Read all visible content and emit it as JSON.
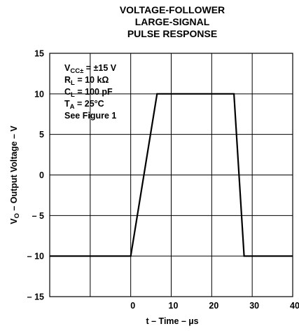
{
  "chart_data": {
    "type": "line",
    "title": [
      "VOLTAGE-FOLLOWER",
      "LARGE-SIGNAL",
      "PULSE RESPONSE"
    ],
    "xlabel": "t – Time – µs",
    "ylabel": {
      "main": "V",
      "sub": "O",
      "rest": " – Output Voltage – V"
    },
    "xlim": [
      -20,
      40
    ],
    "ylim": [
      -15,
      15
    ],
    "x_ticks": [
      -20,
      -10,
      0,
      10,
      20,
      30,
      40
    ],
    "x_tick_labels": [
      "",
      "",
      "0",
      "10",
      "20",
      "30",
      "40"
    ],
    "y_ticks": [
      15,
      10,
      5,
      0,
      -5,
      -10,
      -15
    ],
    "y_tick_labels": [
      "15",
      "10",
      "5",
      "0",
      "– 5",
      "– 10",
      "– 15"
    ],
    "grid": true,
    "series": [
      {
        "x": [
          -20,
          0,
          6.5,
          25.5,
          28,
          40
        ],
        "y": [
          -10,
          -10,
          10,
          10,
          -10,
          -10
        ]
      }
    ],
    "conditions": [
      {
        "main": "V",
        "sub": "CC±",
        "rest": " = ±15 V"
      },
      {
        "main": "R",
        "sub": "L",
        "rest": " = 10 kΩ"
      },
      {
        "main": "C",
        "sub": "L",
        "rest": " = 100 pF"
      },
      {
        "main": "T",
        "sub": "A",
        "rest": " = 25°C"
      },
      {
        "main": "See Figure 1",
        "sub": "",
        "rest": ""
      }
    ]
  }
}
